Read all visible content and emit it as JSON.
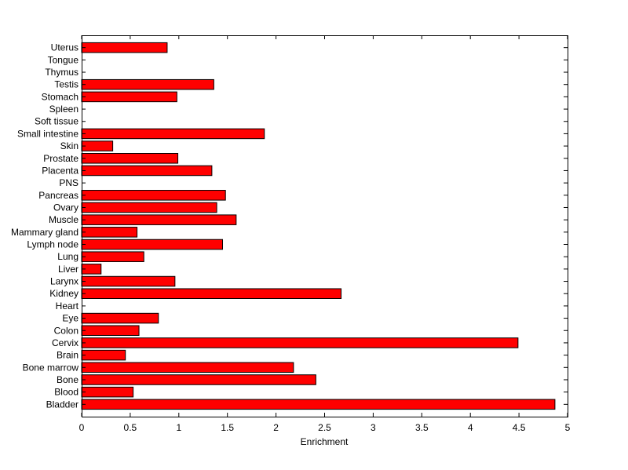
{
  "chart_data": {
    "type": "bar",
    "orientation": "horizontal",
    "title": "",
    "xlabel": "Enrichment",
    "ylabel": "",
    "xlim": [
      0,
      5
    ],
    "xticks": [
      0,
      0.5,
      1,
      1.5,
      2,
      2.5,
      3,
      3.5,
      4,
      4.5,
      5
    ],
    "xtick_labels": [
      "0",
      "0.5",
      "1",
      "1.5",
      "2",
      "2.5",
      "3",
      "3.5",
      "4",
      "4.5",
      "5"
    ],
    "grid": false,
    "legend": "none",
    "bar_color": "#ff0000",
    "bar_edge_color": "#000000",
    "categories": [
      "Bladder",
      "Blood",
      "Bone",
      "Bone marrow",
      "Brain",
      "Cervix",
      "Colon",
      "Eye",
      "Heart",
      "Kidney",
      "Larynx",
      "Liver",
      "Lung",
      "Lymph node",
      "Mammary gland",
      "Muscle",
      "Ovary",
      "Pancreas",
      "PNS",
      "Placenta",
      "Prostate",
      "Skin",
      "Small intestine",
      "Soft tissue",
      "Spleen",
      "Stomach",
      "Testis",
      "Thymus",
      "Tongue",
      "Uterus"
    ],
    "values": [
      4.87,
      0.53,
      2.41,
      2.18,
      0.45,
      4.49,
      0.59,
      0.79,
      0,
      2.67,
      0.96,
      0.2,
      0.64,
      1.45,
      0.57,
      1.59,
      1.39,
      1.48,
      0,
      1.34,
      0.99,
      0.32,
      1.88,
      0,
      0,
      0.98,
      1.36,
      0,
      0,
      0.88
    ]
  }
}
